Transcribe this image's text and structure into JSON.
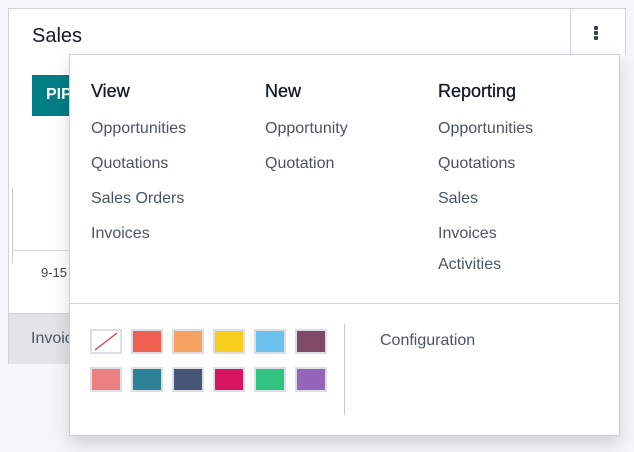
{
  "card": {
    "title": "Sales",
    "pipeline_button": "PIPELINE",
    "date_label": "9-15",
    "footer_label": "Invoices"
  },
  "menu": {
    "view": {
      "heading": "View",
      "items": [
        "Opportunities",
        "Quotations",
        "Sales Orders",
        "Invoices"
      ]
    },
    "new": {
      "heading": "New",
      "items": [
        "Opportunity",
        "Quotation"
      ]
    },
    "reporting": {
      "heading": "Reporting",
      "items": [
        "Opportunities",
        "Quotations",
        "Sales",
        "Invoices",
        "Activities"
      ]
    },
    "colors": [
      "none",
      "#f06050",
      "#f4a460",
      "#f7cd1f",
      "#6cc1ed",
      "#814968",
      "#eb7e7f",
      "#2c8397",
      "#475577",
      "#d6145f",
      "#30c381",
      "#9365b8"
    ],
    "configuration": "Configuration"
  },
  "icons": {
    "kebab": "kebab-vertical-icon"
  }
}
